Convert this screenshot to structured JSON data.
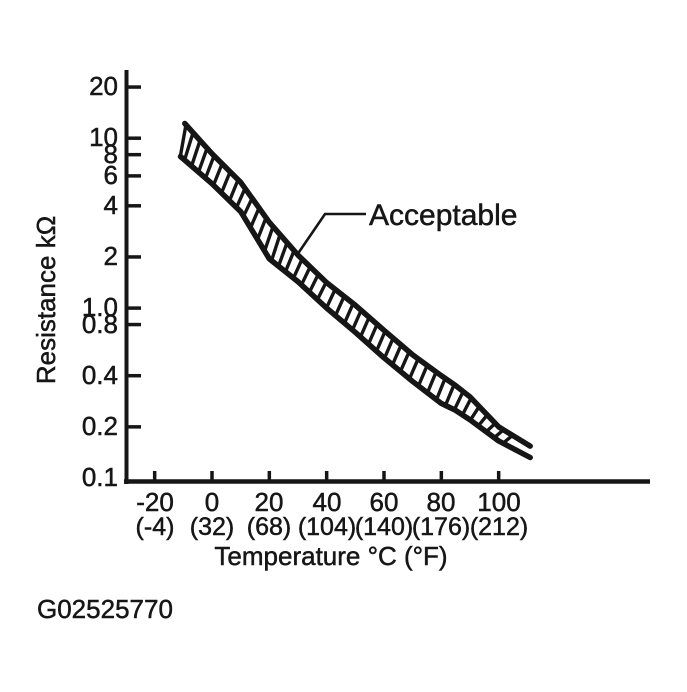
{
  "figure_code": "G02525770",
  "ink_color": "#161616",
  "background_color": "#ffffff",
  "chart_data": {
    "type": "area",
    "title": "",
    "ylabel": "Resistance kΩ",
    "xlabel": "Temperature °C (°F)",
    "annotation_label": "Acceptable",
    "band_style": "hatched",
    "grid": "off",
    "legend_position": "none",
    "y_axis": {
      "scale": "log",
      "range": [
        0.1,
        20
      ],
      "ticks": [
        {
          "value": 20,
          "label": "20",
          "has_tick": true
        },
        {
          "value": 10,
          "label": "10",
          "has_tick": true
        },
        {
          "value": 8,
          "label": "8",
          "has_tick": true
        },
        {
          "value": 6,
          "label": "6",
          "has_tick": true
        },
        {
          "value": 4,
          "label": "4",
          "has_tick": true
        },
        {
          "value": 2,
          "label": "2",
          "has_tick": true
        },
        {
          "value": 1.0,
          "label": "1.0",
          "has_tick": true
        },
        {
          "value": 0.8,
          "label": "0.8",
          "has_tick": true
        },
        {
          "value": 0.4,
          "label": "0.4",
          "has_tick": true
        },
        {
          "value": 0.2,
          "label": "0.2",
          "has_tick": true
        },
        {
          "value": 0.1,
          "label": "0.1",
          "has_tick": false
        }
      ]
    },
    "x_axis": {
      "scale": "linear",
      "range_c": [
        -20,
        111
      ],
      "ticks": [
        {
          "c": -20,
          "label_c": "-20",
          "label_f": "(-4)"
        },
        {
          "c": 0,
          "label_c": "0",
          "label_f": "(32)"
        },
        {
          "c": 20,
          "label_c": "20",
          "label_f": "(68)"
        },
        {
          "c": 40,
          "label_c": "40",
          "label_f": "(104)"
        },
        {
          "c": 60,
          "label_c": "60",
          "label_f": "(140)"
        },
        {
          "c": 80,
          "label_c": "80",
          "label_f": "(176)"
        },
        {
          "c": 100,
          "label_c": "100",
          "label_f": "(212)"
        }
      ]
    },
    "series": [
      {
        "name": "upper-limit",
        "points_c_kohm": [
          [
            -9.5,
            12.2
          ],
          [
            0,
            8.1
          ],
          [
            10,
            5.5
          ],
          [
            20,
            3.2
          ],
          [
            30,
            2.05
          ],
          [
            40,
            1.41
          ],
          [
            50,
            1.04
          ],
          [
            60,
            0.74
          ],
          [
            70,
            0.53
          ],
          [
            80,
            0.4
          ],
          [
            85,
            0.35
          ],
          [
            90,
            0.3
          ],
          [
            100,
            0.2
          ],
          [
            111,
            0.154
          ]
        ]
      },
      {
        "name": "lower-limit",
        "points_c_kohm": [
          [
            -11,
            7.8
          ],
          [
            0,
            5.4
          ],
          [
            10,
            3.7
          ],
          [
            20,
            1.95
          ],
          [
            30,
            1.43
          ],
          [
            40,
            1.0
          ],
          [
            50,
            0.72
          ],
          [
            60,
            0.51
          ],
          [
            70,
            0.37
          ],
          [
            80,
            0.275
          ],
          [
            85,
            0.25
          ],
          [
            90,
            0.22
          ],
          [
            100,
            0.165
          ],
          [
            111,
            0.132
          ]
        ]
      }
    ]
  }
}
